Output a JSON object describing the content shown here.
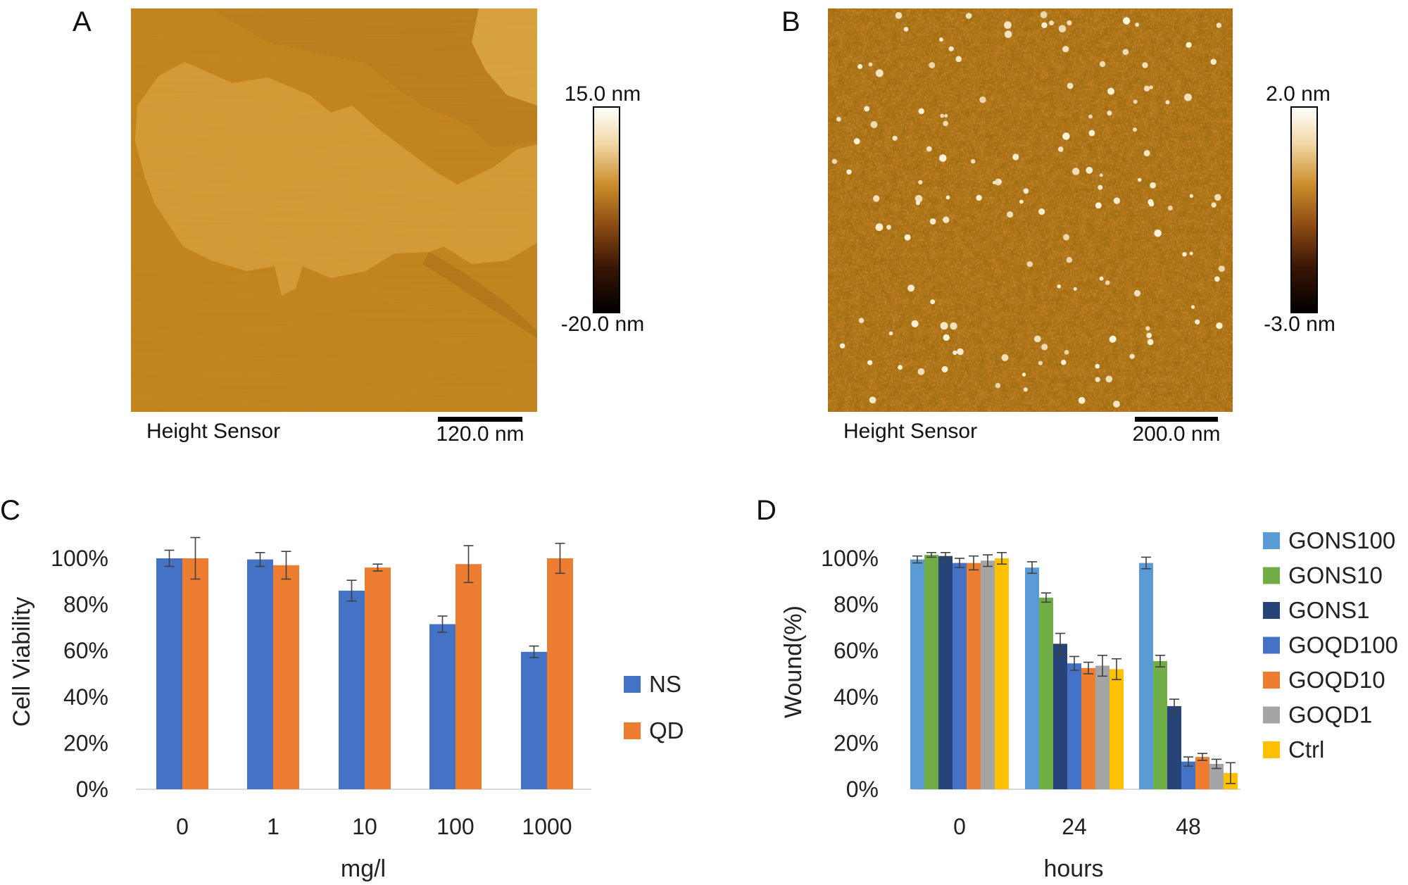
{
  "panels": {
    "a": {
      "label": "A",
      "caption": "Height Sensor",
      "scale_bar_label": "120.0 nm",
      "colorbar_max": "15.0 nm",
      "colorbar_min": "-20.0 nm"
    },
    "b": {
      "label": "B",
      "caption": "Height Sensor",
      "scale_bar_label": "200.0 nm",
      "colorbar_max": "2.0 nm",
      "colorbar_min": "-3.0 nm"
    },
    "c": {
      "label": "C"
    },
    "d": {
      "label": "D"
    }
  },
  "colors": {
    "afm_base": "#c2811c",
    "afm_light": "#dca23e",
    "afm_dark": "#a56a12",
    "ns_blue": "#4472c4",
    "qd_orange": "#ed7d31",
    "gons100": "#5b9bd5",
    "gons10": "#70ad47",
    "gons1": "#264478",
    "goqd100": "#4472c4",
    "goqd10": "#ed7d31",
    "goqd1": "#a5a5a5",
    "ctrl": "#ffc000"
  },
  "chart_data": [
    {
      "id": "C",
      "type": "bar",
      "title": "",
      "xlabel": "mg/l",
      "ylabel": "Cell Viability",
      "ylim": [
        0,
        100
      ],
      "yticks": [
        "0%",
        "20%",
        "40%",
        "60%",
        "80%",
        "100%"
      ],
      "categories": [
        "0",
        "1",
        "10",
        "100",
        "1000"
      ],
      "series": [
        {
          "name": "NS",
          "color": "#4472c4",
          "values": [
            100,
            99.5,
            86,
            71.5,
            59.5
          ],
          "errors": [
            3.5,
            3,
            4.5,
            3.5,
            2.5
          ]
        },
        {
          "name": "QD",
          "color": "#ed7d31",
          "values": [
            100,
            97,
            96,
            97.5,
            100
          ],
          "errors": [
            9,
            6,
            1.5,
            8,
            6.5
          ]
        }
      ],
      "legend": "right"
    },
    {
      "id": "D",
      "type": "bar",
      "title": "",
      "xlabel": "hours",
      "ylabel": "Wound(%)",
      "ylim": [
        0,
        100
      ],
      "yticks": [
        "0%",
        "20%",
        "40%",
        "60%",
        "80%",
        "100%"
      ],
      "categories": [
        "0",
        "24",
        "48"
      ],
      "series": [
        {
          "name": "GONS100",
          "color": "#5b9bd5",
          "values": [
            99.5,
            96,
            98
          ],
          "errors": [
            1.5,
            2.5,
            2.5
          ]
        },
        {
          "name": "GONS10",
          "color": "#70ad47",
          "values": [
            101.5,
            83,
            55.5
          ],
          "errors": [
            1,
            2,
            2.5
          ]
        },
        {
          "name": "GONS1",
          "color": "#264478",
          "values": [
            101,
            63,
            36
          ],
          "errors": [
            1.5,
            4.5,
            3
          ]
        },
        {
          "name": "GOQD100",
          "color": "#4472c4",
          "values": [
            98,
            54.5,
            12
          ],
          "errors": [
            2,
            3,
            2
          ]
        },
        {
          "name": "GOQD10",
          "color": "#ed7d31",
          "values": [
            98,
            52.5,
            14
          ],
          "errors": [
            3,
            2.5,
            1.5
          ]
        },
        {
          "name": "GOQD1",
          "color": "#a5a5a5",
          "values": [
            99,
            53.5,
            11
          ],
          "errors": [
            2.5,
            4.5,
            2
          ]
        },
        {
          "name": "Ctrl",
          "color": "#ffc000",
          "values": [
            100,
            52,
            7
          ],
          "errors": [
            2.5,
            4.5,
            4.5
          ]
        }
      ],
      "legend": "right"
    }
  ]
}
